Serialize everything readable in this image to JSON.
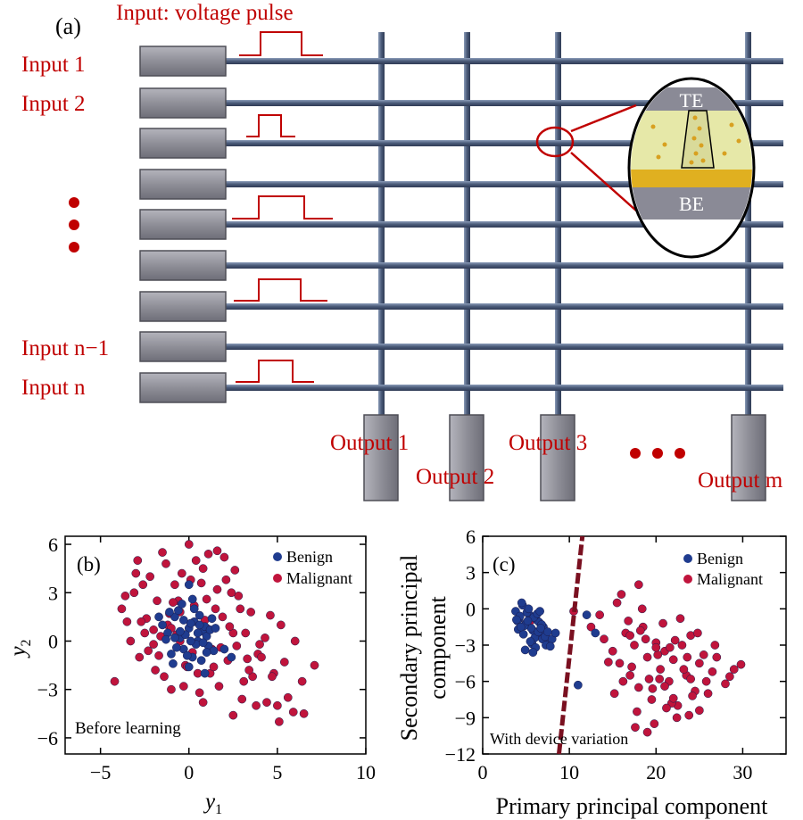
{
  "panel_a": {
    "label": "(a)",
    "pulse_title": "Input: voltage pulse",
    "inputs": [
      "Input 1",
      "Input 2",
      "Input n−1",
      "Input n"
    ],
    "outputs": [
      "Output 1",
      "Output 2",
      "Output 3",
      "Output m"
    ],
    "device": {
      "top": "TE",
      "bottom": "BE"
    },
    "colors": {
      "label": "#c00000",
      "wire": "#4a5a78",
      "box": "#8e8e96",
      "pulse": "#c00000"
    }
  },
  "chart_data": [
    {
      "type": "scatter",
      "panel_label": "(b)",
      "annotation": "Before learning",
      "xlabel": "y1",
      "ylabel": "y2",
      "xlim": [
        -7,
        10
      ],
      "ylim": [
        -7,
        6.5
      ],
      "xticks": [
        "−5",
        "0",
        "5",
        "10"
      ],
      "yticks": [
        "−6",
        "−3",
        "0",
        "3",
        "6"
      ],
      "legend": "top-right",
      "series": [
        {
          "name": "Benign",
          "color": "#1f3c8f",
          "x": [
            -1.5,
            -1.2,
            -0.8,
            -0.5,
            -0.3,
            0.0,
            0.3,
            0.5,
            0.8,
            1.1,
            -1.0,
            -0.6,
            -0.2,
            0.2,
            0.6,
            1.0,
            1.4,
            -1.3,
            -0.9,
            -0.4,
            0.1,
            0.4,
            0.9,
            1.3,
            -0.7,
            -0.1,
            0.3,
            0.7,
            1.2,
            -1.1,
            -0.5,
            0.0,
            0.5,
            1.0,
            -0.3,
            0.2,
            0.8,
            -0.8,
            0.1,
            0.6,
            1.5,
            2.0,
            -1.7,
            2.4,
            0.0,
            0.9
          ],
          "y": [
            1.0,
            0.5,
            1.5,
            0.2,
            -0.5,
            0.8,
            1.2,
            0.0,
            0.6,
            -0.3,
            -0.8,
            1.9,
            0.4,
            -1.0,
            1.6,
            0.3,
            -0.6,
            0.1,
            -1.4,
            2.3,
            1.1,
            -0.2,
            0.9,
            1.4,
            -0.4,
            -0.9,
            2.0,
            -1.2,
            0.7,
            1.8,
            0.6,
            -1.6,
            0.5,
            -0.7,
            1.3,
            2.6,
            -0.1,
            0.2,
            0.0,
            1.0,
            0.8,
            -0.5,
            1.5,
            -1.0,
            3.5,
            -2.0
          ]
        },
        {
          "name": "Malignant",
          "color": "#c0143c",
          "x": [
            -4.2,
            -3.8,
            -3.5,
            -3.1,
            -2.8,
            -2.5,
            -2.2,
            -2.0,
            -1.8,
            -1.5,
            -1.2,
            -1.0,
            -0.8,
            -0.5,
            -0.2,
            0.0,
            0.3,
            0.5,
            0.8,
            1.0,
            1.3,
            1.6,
            1.9,
            2.2,
            2.5,
            2.8,
            3.1,
            3.5,
            3.9,
            4.3,
            4.8,
            5.2,
            5.6,
            6.0,
            6.5,
            7.1,
            -3.3,
            -2.6,
            -1.9,
            -1.3,
            -0.6,
            0.2,
            0.9,
            1.7,
            2.4,
            3.2,
            4.1,
            5.0,
            5.9,
            -2.9,
            -1.6,
            -0.4,
            0.6,
            1.5,
            2.7,
            3.6,
            4.6,
            -3.6,
            -2.3,
            -1.1,
            0.4,
            1.2,
            2.0,
            3.0,
            4.4,
            5.4,
            -2.0,
            -0.9,
            1.8,
            2.9,
            3.8,
            -1.4,
            0.7,
            2.3,
            3.4,
            -0.3,
            1.1,
            6.4,
            -3.0,
            -2.4,
            -0.7,
            0.1,
            1.4,
            2.6,
            -1.7,
            -0.1,
            1.0,
            2.1,
            3.3,
            4.0,
            5.1,
            -2.7,
            -1.0,
            0.8,
            2.5,
            4.7,
            -0.5,
            1.6
          ],
          "y": [
            -2.5,
            2.0,
            1.2,
            3.0,
            -1.0,
            0.5,
            4.0,
            -0.2,
            2.5,
            5.5,
            1.0,
            -3.0,
            3.5,
            0.0,
            -1.5,
            6.0,
            2.2,
            -2.0,
            4.5,
            0.8,
            -0.5,
            3.2,
            1.5,
            -1.2,
            0.5,
            2.8,
            -2.5,
            1.8,
            -0.8,
            0.2,
            -2.0,
            1.0,
            -3.5,
            0.0,
            -4.5,
            -1.5,
            0.0,
            3.5,
            -1.8,
            4.8,
            2.5,
            -0.7,
            1.3,
            -2.8,
            3.0,
            0.5,
            -1.0,
            -4.0,
            -4.4,
            5.0,
            0.3,
            4.2,
            -3.2,
            2.0,
            -0.3,
            -2.2,
            1.6,
            2.8,
            -0.6,
            1.7,
            5.0,
            -2.0,
            5.2,
            -3.6,
            -3.8,
            -1.3,
            0.7,
            2.4,
            -0.4,
            2.0,
            -4.0,
            -2.2,
            3.6,
            0.9,
            -1.8,
            -2.8,
            5.4,
            -2.5,
            4.2,
            1.4,
            0.4,
            3.8,
            -1.6,
            4.4,
            -0.9,
            -1.6,
            2.6,
            3.8,
            -1.1,
            -0.2,
            -5.0,
            1.2,
            0.8,
            -3.8,
            -4.6,
            -2.2,
            1.8,
            5.6
          ]
        }
      ]
    },
    {
      "type": "scatter",
      "panel_label": "(c)",
      "annotation": "With device variation",
      "xlabel": "Primary principal component",
      "ylabel": "Secondary principal component",
      "xlim": [
        0,
        35
      ],
      "ylim": [
        -12,
        6
      ],
      "xticks": [
        "0",
        "10",
        "20",
        "30"
      ],
      "yticks": [
        "−12",
        "−9",
        "−6",
        "−3",
        "0",
        "3",
        "6"
      ],
      "legend": "top-right",
      "decision_line": {
        "x": [
          8.8,
          11.5
        ],
        "y": [
          -12,
          6
        ],
        "color": "#7a1020"
      },
      "series": [
        {
          "name": "Benign",
          "color": "#1f3c8f",
          "x": [
            3.8,
            4.2,
            4.6,
            5.0,
            5.4,
            5.8,
            6.2,
            6.6,
            7.0,
            7.4,
            4.0,
            4.5,
            5.1,
            5.6,
            6.0,
            6.5,
            7.1,
            7.6,
            4.3,
            4.8,
            5.3,
            5.9,
            6.4,
            6.9,
            7.3,
            4.1,
            4.7,
            5.2,
            5.7,
            6.3,
            6.8,
            7.2,
            3.9,
            4.4,
            5.5,
            6.1,
            6.7,
            7.5,
            8.0,
            4.9,
            5.8,
            6.6,
            7.8,
            8.4,
            12.0,
            13.0,
            11.0
          ],
          "y": [
            -0.2,
            -0.8,
            0.3,
            -1.2,
            -0.5,
            -1.8,
            -0.9,
            -2.2,
            -1.5,
            -2.6,
            -1.0,
            0.5,
            -0.3,
            -1.6,
            -2.4,
            -1.1,
            -2.0,
            -2.8,
            -0.6,
            -1.4,
            0.0,
            -0.7,
            -1.9,
            -2.5,
            -3.0,
            -1.7,
            -2.1,
            -1.0,
            -2.9,
            -0.4,
            -1.3,
            -2.3,
            -0.9,
            -1.5,
            -2.7,
            -3.2,
            -1.6,
            -1.9,
            -2.5,
            -3.4,
            -3.6,
            -0.2,
            -3.1,
            -2.0,
            -0.5,
            -2.0,
            -6.3
          ]
        },
        {
          "name": "Malignant",
          "color": "#c0143c",
          "x": [
            5.5,
            10.5,
            12.5,
            14.0,
            15.0,
            15.8,
            16.5,
            17.0,
            17.5,
            18.0,
            18.5,
            19.0,
            19.5,
            20.0,
            20.5,
            21.0,
            21.5,
            22.0,
            22.5,
            23.0,
            23.5,
            24.0,
            24.5,
            25.0,
            25.5,
            26.0,
            26.5,
            27.0,
            28.0,
            29.0,
            29.8,
            15.5,
            16.8,
            17.8,
            18.8,
            19.8,
            20.8,
            21.8,
            22.8,
            23.8,
            24.8,
            16.2,
            17.2,
            18.2,
            19.2,
            20.2,
            21.2,
            22.2,
            23.2,
            14.5,
            17.6,
            19.6,
            21.6,
            24.2,
            26.8,
            16.0,
            18.4,
            20.4,
            22.4,
            25.8,
            15.2,
            19.0,
            23.6,
            13.5,
            17.0,
            21.0,
            25.0,
            28.5,
            18.0,
            20.0,
            22.0,
            24.0
          ],
          "y": [
            -1.0,
            -0.2,
            -1.5,
            -2.5,
            -3.5,
            -4.5,
            -2.0,
            -5.5,
            -3.0,
            -6.5,
            -1.5,
            -4.0,
            -7.5,
            -2.8,
            -5.0,
            -3.5,
            -6.0,
            -4.2,
            -8.0,
            -3.0,
            -5.5,
            -2.2,
            -6.8,
            -4.5,
            -3.8,
            -7.0,
            -5.2,
            -4.0,
            -6.2,
            -5.0,
            -4.6,
            0.5,
            -1.0,
            -8.5,
            -2.5,
            -9.5,
            -1.2,
            -7.8,
            -0.8,
            -8.8,
            -2.0,
            -6.0,
            -4.8,
            -1.8,
            -5.8,
            -3.8,
            -8.2,
            -2.6,
            -5.0,
            -4.4,
            -9.8,
            -6.6,
            -3.2,
            -7.2,
            -3.0,
            1.2,
            0.0,
            -5.8,
            -9.0,
            -6.0,
            -7.0,
            -10.2,
            -4.0,
            -0.5,
            -2.2,
            -6.4,
            -8.4,
            -5.6,
            2.0,
            -3.2,
            -7.4,
            -5.8
          ]
        }
      ]
    }
  ]
}
